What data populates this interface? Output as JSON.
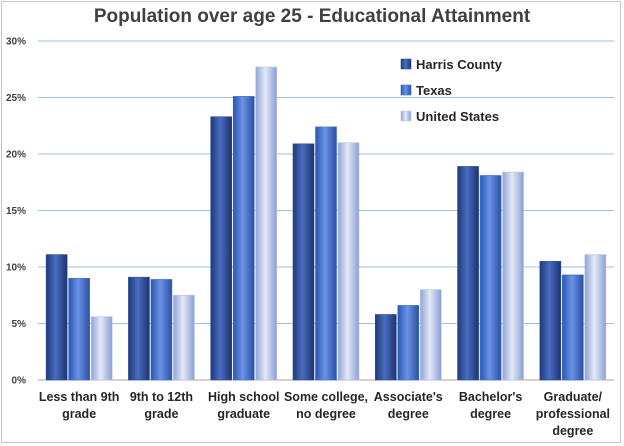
{
  "chart_data": {
    "type": "bar",
    "title": "Population over age 25 - Educational Attainment",
    "xlabel": "",
    "ylabel": "",
    "ylim": [
      0,
      30
    ],
    "y_ticks": [
      "0%",
      "5%",
      "10%",
      "15%",
      "20%",
      "25%",
      "30%"
    ],
    "y_tick_values": [
      0,
      5,
      10,
      15,
      20,
      25,
      30
    ],
    "grid": true,
    "legend_position": "top-right",
    "categories": [
      [
        "Less than 9th",
        "grade"
      ],
      [
        "9th to 12th",
        "grade"
      ],
      [
        "High school",
        "graduate"
      ],
      [
        "Some college,",
        "no degree"
      ],
      [
        "Associate's",
        "degree"
      ],
      [
        "Bachelor's",
        "degree"
      ],
      [
        "Graduate/",
        "professional",
        "degree"
      ]
    ],
    "series": [
      {
        "name": "Harris County",
        "color": "#2e4f96",
        "values": [
          11.1,
          9.1,
          23.3,
          20.9,
          5.8,
          18.9,
          10.5
        ]
      },
      {
        "name": "Texas",
        "color": "#3f6fcd",
        "values": [
          9.0,
          8.9,
          25.1,
          22.4,
          6.6,
          18.1,
          9.3
        ]
      },
      {
        "name": "United States",
        "color": "#b7c4e6",
        "values": [
          5.6,
          7.5,
          27.7,
          21.0,
          8.0,
          18.4,
          11.1
        ]
      }
    ]
  }
}
